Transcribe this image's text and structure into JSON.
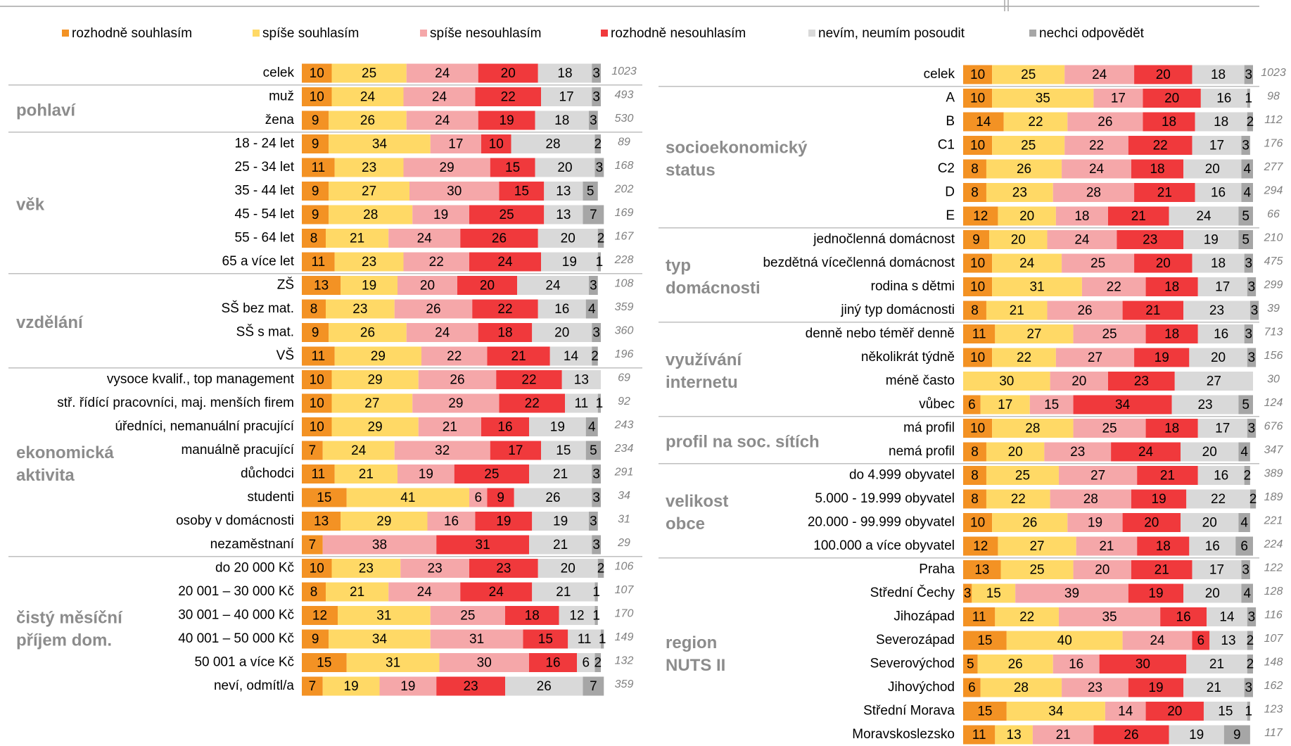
{
  "chart_data": {
    "type": "bar",
    "stacked": true,
    "orientation": "horizontal",
    "xlim": [
      0,
      100
    ],
    "series": [
      {
        "name": "rozhodně souhlasím",
        "color": "#f39224"
      },
      {
        "name": "spíše souhlasím",
        "color": "#ffd966"
      },
      {
        "name": "spíše nesouhlasím",
        "color": "#f5a7a9"
      },
      {
        "name": "rozhodně nesouhlasím",
        "color": "#f0393c"
      },
      {
        "name": "nevím, neumím posoudit",
        "color": "#d9d9d9"
      },
      {
        "name": "nechci odpovědět",
        "color": "#a6a6a6"
      }
    ],
    "panels": [
      {
        "groups": [
          {
            "rows": [
              {
                "label": "celek",
                "values": [
                  10,
                  25,
                  24,
                  20,
                  18,
                  3
                ],
                "n": 1023
              }
            ]
          },
          {
            "label": [
              "pohlaví"
            ],
            "rows": [
              {
                "label": "muž",
                "values": [
                  10,
                  24,
                  24,
                  22,
                  17,
                  3
                ],
                "n": 493
              },
              {
                "label": "žena",
                "values": [
                  9,
                  26,
                  24,
                  19,
                  18,
                  3
                ],
                "n": 530
              }
            ]
          },
          {
            "label": [
              "věk"
            ],
            "rows": [
              {
                "label": "18 - 24 let",
                "values": [
                  9,
                  34,
                  17,
                  10,
                  28,
                  2
                ],
                "n": 89
              },
              {
                "label": "25 - 34 let",
                "values": [
                  11,
                  23,
                  29,
                  15,
                  20,
                  3
                ],
                "n": 168
              },
              {
                "label": "35 - 44 let",
                "values": [
                  9,
                  27,
                  30,
                  15,
                  13,
                  5
                ],
                "n": 202
              },
              {
                "label": "45 - 54 let",
                "values": [
                  9,
                  28,
                  19,
                  25,
                  13,
                  7
                ],
                "n": 169
              },
              {
                "label": "55 - 64 let",
                "values": [
                  8,
                  21,
                  24,
                  26,
                  20,
                  2
                ],
                "n": 167
              },
              {
                "label": "65 a více let",
                "values": [
                  11,
                  23,
                  22,
                  24,
                  19,
                  1
                ],
                "n": 228
              }
            ]
          },
          {
            "label": [
              "vzdělání"
            ],
            "rows": [
              {
                "label": "ZŠ",
                "values": [
                  13,
                  19,
                  20,
                  20,
                  24,
                  3
                ],
                "n": 108
              },
              {
                "label": "SŠ bez mat.",
                "values": [
                  8,
                  23,
                  26,
                  22,
                  16,
                  4
                ],
                "n": 359
              },
              {
                "label": "SŠ s mat.",
                "values": [
                  9,
                  26,
                  24,
                  18,
                  20,
                  3
                ],
                "n": 360
              },
              {
                "label": "VŠ",
                "values": [
                  11,
                  29,
                  22,
                  21,
                  14,
                  2
                ],
                "n": 196
              }
            ]
          },
          {
            "label": [
              "ekonomická",
              "aktivita"
            ],
            "rows": [
              {
                "label": "vysoce kvalif., top management",
                "values": [
                  10,
                  29,
                  26,
                  22,
                  13,
                  null
                ],
                "n": 69
              },
              {
                "label": "stř. řídící pracovníci, maj. menších firem",
                "values": [
                  10,
                  27,
                  29,
                  22,
                  11,
                  1
                ],
                "n": 92
              },
              {
                "label": "úředníci, nemanuální pracující",
                "values": [
                  10,
                  29,
                  21,
                  16,
                  19,
                  4
                ],
                "n": 243
              },
              {
                "label": "manuálně pracující",
                "values": [
                  7,
                  24,
                  32,
                  17,
                  15,
                  5
                ],
                "n": 234
              },
              {
                "label": "důchodci",
                "values": [
                  11,
                  21,
                  19,
                  25,
                  21,
                  3
                ],
                "n": 291
              },
              {
                "label": "studenti",
                "values": [
                  15,
                  41,
                  6,
                  9,
                  26,
                  3
                ],
                "n": 34
              },
              {
                "label": "osoby v domácnosti",
                "values": [
                  13,
                  29,
                  16,
                  19,
                  19,
                  3
                ],
                "n": 31
              },
              {
                "label": "nezaměstnaní",
                "values": [
                  7,
                  null,
                  38,
                  31,
                  21,
                  3
                ],
                "n": 29
              }
            ]
          },
          {
            "label": [
              "čistý měsíční",
              "příjem dom."
            ],
            "rows": [
              {
                "label": "do 20 000 Kč",
                "values": [
                  10,
                  23,
                  23,
                  23,
                  20,
                  2
                ],
                "n": 106
              },
              {
                "label": "20 001 – 30 000 Kč",
                "values": [
                  8,
                  21,
                  24,
                  24,
                  21,
                  1
                ],
                "n": 107
              },
              {
                "label": "30 001 – 40 000 Kč",
                "values": [
                  12,
                  31,
                  25,
                  18,
                  12,
                  1
                ],
                "n": 170
              },
              {
                "label": "40 001 – 50 000 Kč",
                "values": [
                  9,
                  34,
                  31,
                  15,
                  11,
                  1
                ],
                "n": 149
              },
              {
                "label": "50 001 a více Kč",
                "values": [
                  15,
                  31,
                  30,
                  16,
                  6,
                  2
                ],
                "n": 132
              },
              {
                "label": "neví, odmítl/a",
                "values": [
                  7,
                  19,
                  19,
                  23,
                  26,
                  7
                ],
                "n": 359
              }
            ]
          }
        ]
      },
      {
        "groups": [
          {
            "rows": [
              {
                "label": "celek",
                "values": [
                  10,
                  25,
                  24,
                  20,
                  18,
                  3
                ],
                "n": 1023
              }
            ]
          },
          {
            "label": [
              "socioekonomický",
              "status"
            ],
            "rows": [
              {
                "label": "A",
                "values": [
                  10,
                  35,
                  17,
                  20,
                  16,
                  1
                ],
                "n": 98
              },
              {
                "label": "B",
                "values": [
                  14,
                  22,
                  26,
                  18,
                  18,
                  2
                ],
                "n": 112
              },
              {
                "label": "C1",
                "values": [
                  10,
                  25,
                  22,
                  22,
                  17,
                  3
                ],
                "n": 176
              },
              {
                "label": "C2",
                "values": [
                  8,
                  26,
                  24,
                  18,
                  20,
                  4
                ],
                "n": 277
              },
              {
                "label": "D",
                "values": [
                  8,
                  23,
                  28,
                  21,
                  16,
                  4
                ],
                "n": 294
              },
              {
                "label": "E",
                "values": [
                  12,
                  20,
                  18,
                  21,
                  24,
                  5
                ],
                "n": 66
              }
            ]
          },
          {
            "label": [
              "typ",
              "domácnosti"
            ],
            "rows": [
              {
                "label": "jednočlenná domácnost",
                "values": [
                  9,
                  20,
                  24,
                  23,
                  19,
                  5
                ],
                "n": 210
              },
              {
                "label": "bezdětná vícečlenná domácnost",
                "values": [
                  10,
                  24,
                  25,
                  20,
                  18,
                  3
                ],
                "n": 475
              },
              {
                "label": "rodina s dětmi",
                "values": [
                  10,
                  31,
                  22,
                  18,
                  17,
                  3
                ],
                "n": 299
              },
              {
                "label": "jiný typ domácnosti",
                "values": [
                  8,
                  21,
                  26,
                  21,
                  23,
                  3
                ],
                "n": 39
              }
            ]
          },
          {
            "label": [
              "využívání",
              "internetu"
            ],
            "rows": [
              {
                "label": "denně nebo téměř denně",
                "values": [
                  11,
                  27,
                  25,
                  18,
                  16,
                  3
                ],
                "n": 713
              },
              {
                "label": "několikrát týdně",
                "values": [
                  10,
                  22,
                  27,
                  19,
                  20,
                  3
                ],
                "n": 156
              },
              {
                "label": "méně často",
                "values": [
                  null,
                  30,
                  20,
                  23,
                  27,
                  null
                ],
                "n": 30
              },
              {
                "label": "vůbec",
                "values": [
                  6,
                  17,
                  15,
                  34,
                  23,
                  5
                ],
                "n": 124
              }
            ]
          },
          {
            "label": [
              "profil na soc. sítích"
            ],
            "rows": [
              {
                "label": "má profil",
                "values": [
                  10,
                  28,
                  25,
                  18,
                  17,
                  3
                ],
                "n": 676
              },
              {
                "label": "nemá profil",
                "values": [
                  8,
                  20,
                  23,
                  24,
                  20,
                  4
                ],
                "n": 347
              }
            ]
          },
          {
            "label": [
              "velikost",
              "obce"
            ],
            "rows": [
              {
                "label": "do 4.999 obyvatel",
                "values": [
                  8,
                  25,
                  27,
                  21,
                  16,
                  2
                ],
                "n": 389
              },
              {
                "label": "5.000 - 19.999 obyvatel",
                "values": [
                  8,
                  22,
                  28,
                  19,
                  22,
                  2
                ],
                "n": 189
              },
              {
                "label": "20.000 - 99.999 obyvatel",
                "values": [
                  10,
                  26,
                  19,
                  20,
                  20,
                  4
                ],
                "n": 221
              },
              {
                "label": "100.000 a více obyvatel",
                "values": [
                  12,
                  27,
                  21,
                  18,
                  16,
                  6
                ],
                "n": 224
              }
            ]
          },
          {
            "label": [
              "region",
              "NUTS II"
            ],
            "rows": [
              {
                "label": "Praha",
                "values": [
                  13,
                  25,
                  20,
                  21,
                  17,
                  3
                ],
                "n": 122
              },
              {
                "label": "Střední Čechy",
                "values": [
                  3,
                  15,
                  39,
                  19,
                  20,
                  4
                ],
                "n": 128
              },
              {
                "label": "Jihozápad",
                "values": [
                  11,
                  22,
                  35,
                  16,
                  14,
                  3
                ],
                "n": 116
              },
              {
                "label": "Severozápad",
                "values": [
                  15,
                  40,
                  24,
                  6,
                  13,
                  2
                ],
                "n": 107
              },
              {
                "label": "Severovýchod",
                "values": [
                  5,
                  26,
                  16,
                  30,
                  21,
                  2
                ],
                "n": 148
              },
              {
                "label": "Jihovýchod",
                "values": [
                  6,
                  28,
                  23,
                  19,
                  21,
                  3
                ],
                "n": 162
              },
              {
                "label": "Střední Morava",
                "values": [
                  15,
                  34,
                  14,
                  20,
                  15,
                  1
                ],
                "n": 123
              },
              {
                "label": "Moravskoslezsko",
                "values": [
                  11,
                  13,
                  21,
                  26,
                  19,
                  9
                ],
                "n": 117
              }
            ]
          }
        ]
      }
    ]
  }
}
